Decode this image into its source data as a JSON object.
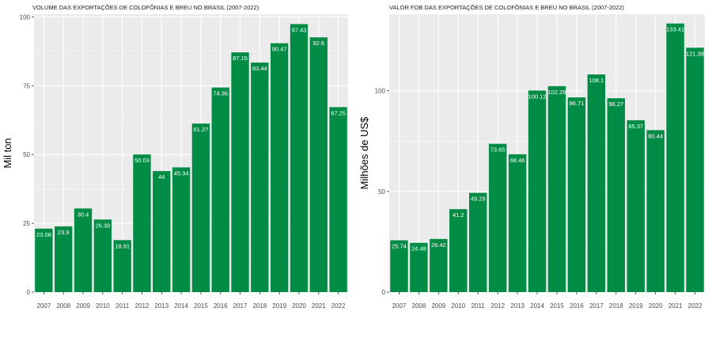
{
  "colors": {
    "bar": "#008c45",
    "panel_bg": "#ebebeb",
    "grid": "#ffffff",
    "label_text": "#ffffff",
    "tick_text": "#4d4d4d"
  },
  "chart_data": [
    {
      "type": "bar",
      "title": "VOLUME DAS EXPORTAÇÕES DE COLOFÔNIAS E BREU NO BRASIL (2007-2022)",
      "xlabel": "",
      "ylabel": "Mil ton",
      "categories": [
        "2007",
        "2008",
        "2009",
        "2010",
        "2011",
        "2012",
        "2013",
        "2014",
        "2015",
        "2016",
        "2017",
        "2018",
        "2019",
        "2020",
        "2021",
        "2022"
      ],
      "values": [
        23.08,
        23.9,
        30.4,
        26.39,
        18.91,
        50.03,
        44,
        45.34,
        61.27,
        74.36,
        87.15,
        83.44,
        90.47,
        97.43,
        92.6,
        67.25
      ],
      "ylim": [
        0,
        101
      ],
      "yticks": [
        0,
        25,
        50,
        75,
        100
      ],
      "grid": true
    },
    {
      "type": "bar",
      "title": "VALOR FOB DAS EXPORTAÇÕES DE COLOFÔNIAS E BREU NO BRASIL (2007-2022)",
      "xlabel": "",
      "ylabel": "Milhões de US$",
      "categories": [
        "2007",
        "2008",
        "2009",
        "2010",
        "2011",
        "2012",
        "2013",
        "2014",
        "2015",
        "2016",
        "2017",
        "2018",
        "2019",
        "2020",
        "2021",
        "2022"
      ],
      "values": [
        25.74,
        24.48,
        26.42,
        41.2,
        49.29,
        73.65,
        68.46,
        100.12,
        102.29,
        96.71,
        108.1,
        96.27,
        85.37,
        80.44,
        133.41,
        121.38
      ],
      "ylim": [
        0,
        138
      ],
      "yticks": [
        0,
        50,
        100
      ],
      "grid": true
    }
  ]
}
